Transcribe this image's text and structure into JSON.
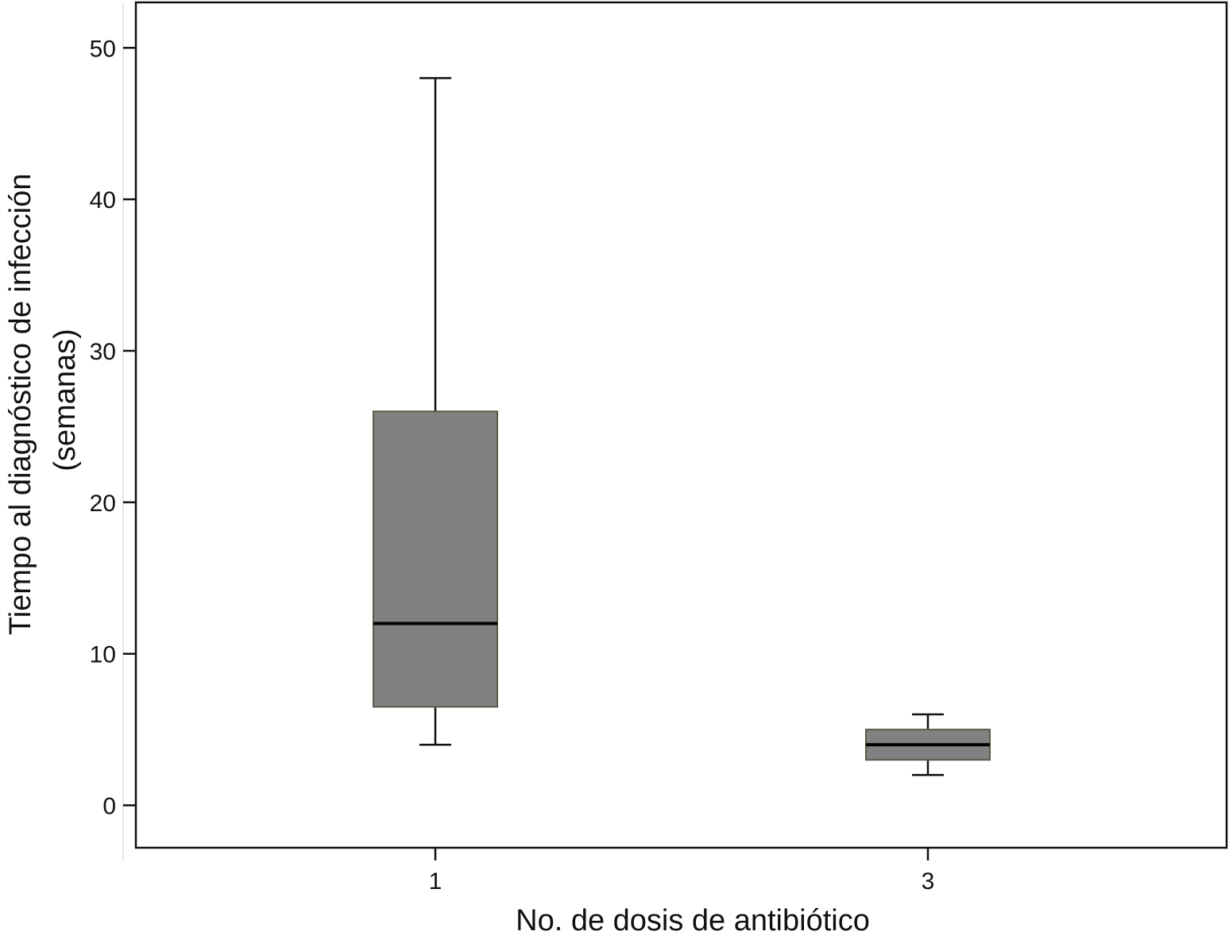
{
  "chart_data": {
    "type": "box",
    "title": "",
    "xlabel": "No. de dosis de antibiótico",
    "ylabel_lines": [
      "Tiempo al diagnóstico de infección",
      "(semanas)"
    ],
    "ylim": [
      -2.8,
      53
    ],
    "yticks": [
      0,
      10,
      20,
      30,
      40,
      50
    ],
    "categories": [
      "1",
      "3"
    ],
    "boxes": [
      {
        "category": "1",
        "whisker_low": 4,
        "q1": 6.5,
        "median": 12,
        "q3": 26,
        "whisker_high": 48
      },
      {
        "category": "3",
        "whisker_low": 2,
        "q1": 3,
        "median": 4,
        "q3": 5,
        "whisker_high": 6
      }
    ],
    "grid": false,
    "colors": {
      "box_fill": "#808180",
      "box_edge": "#5a5a48",
      "line": "#111111"
    }
  }
}
